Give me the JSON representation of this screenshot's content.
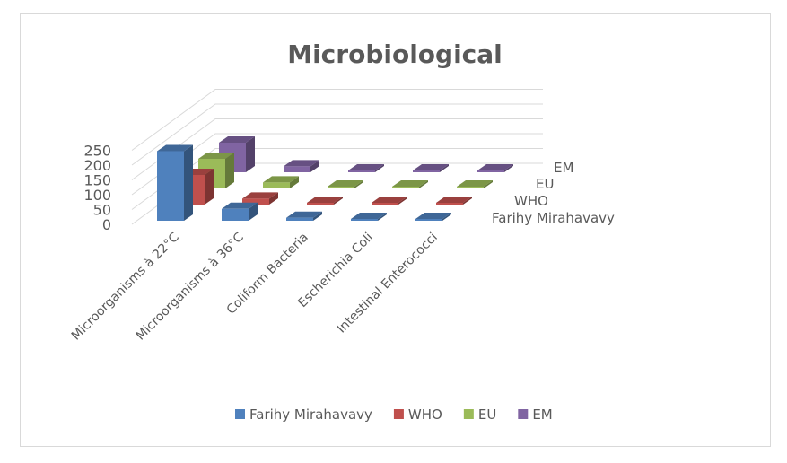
{
  "chart_data": {
    "type": "bar",
    "title": "Microbiological",
    "categories": [
      "Microorganisms à 22°C",
      "Microorganisms à 36°C",
      "Coliform Bacteria",
      "Escherichia Coli",
      "Intestinal Enterococci"
    ],
    "series": [
      {
        "name": "Farihy Mirahavavy",
        "color": "#4f81bd",
        "values": [
          235,
          40,
          10,
          2,
          1
        ]
      },
      {
        "name": "WHO",
        "color": "#c0504d",
        "values": [
          100,
          20,
          0,
          0,
          0
        ]
      },
      {
        "name": "EU",
        "color": "#9bbb59",
        "values": [
          100,
          20,
          0,
          0,
          0
        ]
      },
      {
        "name": "EM",
        "color": "#8064a2",
        "values": [
          100,
          20,
          0,
          0,
          0
        ]
      }
    ],
    "yticks": [
      "0",
      "50",
      "100",
      "150",
      "200",
      "250"
    ],
    "ylim": [
      0,
      250
    ],
    "grid": true,
    "legend": "bottom",
    "style": "3d-column"
  }
}
